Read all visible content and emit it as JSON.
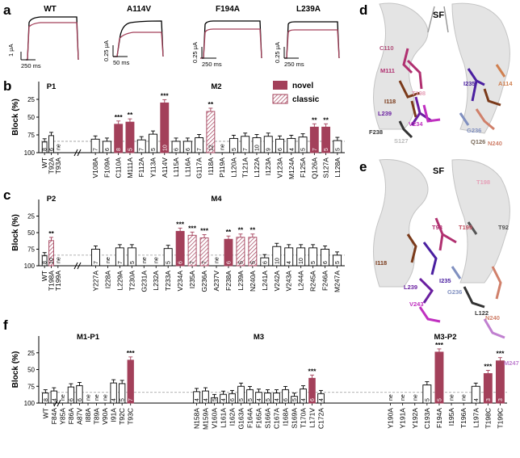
{
  "colors": {
    "novel": "#a3405a",
    "classic_stroke": "#a3405a",
    "wt_trace": "#000000",
    "drug_trace": "#a3405a",
    "bar_open": "#ffffff",
    "structure": "#cfcfcf"
  },
  "panel_labels": {
    "a": "a",
    "b": "b",
    "c": "c",
    "d": "d",
    "e": "e",
    "f": "f"
  },
  "traces": [
    {
      "title": "WT",
      "scale_current": "1 μA",
      "scale_time": "250 ms"
    },
    {
      "title": "A114V",
      "scale_current": "0.25 μA",
      "scale_time": "50 ms"
    },
    {
      "title": "F194A",
      "scale_current": "0.25 μA",
      "scale_time": "250 ms"
    },
    {
      "title": "L239A",
      "scale_current": "0.25 μA",
      "scale_time": "250 ms"
    }
  ],
  "legend": {
    "novel": "novel",
    "classic": "classic"
  },
  "y_axis": {
    "label": "Block (%)",
    "ticks": [
      "25",
      "50",
      "75",
      "100"
    ]
  },
  "structure_labels": {
    "d": {
      "sf": "SF",
      "residues": [
        {
          "text": "C110",
          "color": "#b0507a"
        },
        {
          "text": "M111",
          "color": "#b03070"
        },
        {
          "text": "T198",
          "color": "#e6a0b8"
        },
        {
          "text": "I118",
          "color": "#7a3a1a"
        },
        {
          "text": "L239",
          "color": "#6a1fa0"
        },
        {
          "text": "V234",
          "color": "#c030c0"
        },
        {
          "text": "F238",
          "color": "#333333"
        },
        {
          "text": "S127",
          "color": "#bbbbbb"
        },
        {
          "text": "I235",
          "color": "#4a1fa0"
        },
        {
          "text": "A114",
          "color": "#d08050"
        },
        {
          "text": "G236",
          "color": "#8090c0"
        },
        {
          "text": "Q126",
          "color": "#7a6a5a"
        },
        {
          "text": "N240",
          "color": "#d0806a"
        }
      ]
    },
    "e": {
      "sf": "SF",
      "residues": [
        {
          "text": "T198",
          "color": "#e6a0b8"
        },
        {
          "text": "T93",
          "color": "#b03070"
        },
        {
          "text": "T199",
          "color": "#c05060"
        },
        {
          "text": "T92",
          "color": "#555555"
        },
        {
          "text": "I118",
          "color": "#7a3a1a"
        },
        {
          "text": "I235",
          "color": "#4a1fa0"
        },
        {
          "text": "L239",
          "color": "#6a1fa0"
        },
        {
          "text": "G236",
          "color": "#8090c0"
        },
        {
          "text": "V243",
          "color": "#c030c0"
        },
        {
          "text": "L122",
          "color": "#333333"
        },
        {
          "text": "N240",
          "color": "#d0806a"
        },
        {
          "text": "M247",
          "color": "#c080d0"
        }
      ]
    }
  },
  "chart_data": [
    {
      "type": "bar",
      "panel": "b",
      "ylim": [
        100,
        0
      ],
      "ylabel": "Block (%)",
      "reference_line": 84,
      "groups": [
        {
          "label": "P1",
          "bars": [
            {
              "cat": "WT",
              "value": 85,
              "n": "8",
              "style": "open",
              "sig": ""
            },
            {
              "cat": "T92A",
              "value": 76,
              "n": "6",
              "style": "open",
              "sig": ""
            },
            {
              "cat": "T93A",
              "value": null,
              "n": "ne",
              "style": "none",
              "sig": ""
            }
          ]
        },
        {
          "label": "M2",
          "bars": [
            {
              "cat": "V108A",
              "value": 81,
              "n": "7",
              "style": "open",
              "sig": ""
            },
            {
              "cat": "F109A",
              "value": 84,
              "n": "6",
              "style": "open",
              "sig": ""
            },
            {
              "cat": "C110A",
              "value": 60,
              "n": "8",
              "style": "novel",
              "sig": "***"
            },
            {
              "cat": "M111A",
              "value": 57,
              "n": "5",
              "style": "novel",
              "sig": "**"
            },
            {
              "cat": "F112A",
              "value": 82,
              "n": "7",
              "style": "open",
              "sig": ""
            },
            {
              "cat": "Y113A",
              "value": 74,
              "n": "5",
              "style": "open",
              "sig": ""
            },
            {
              "cat": "A114V",
              "value": 30,
              "n": "10",
              "style": "novel",
              "sig": "***"
            },
            {
              "cat": "L115A",
              "value": 84,
              "n": "6",
              "style": "open",
              "sig": ""
            },
            {
              "cat": "L116A",
              "value": 84,
              "n": "6",
              "style": "open",
              "sig": ""
            },
            {
              "cat": "G117A",
              "value": 79,
              "n": "7",
              "style": "open",
              "sig": ""
            },
            {
              "cat": "I118A",
              "value": 42,
              "n": "12",
              "style": "classic",
              "sig": "**"
            },
            {
              "cat": "P119A",
              "value": null,
              "n": "ne",
              "style": "none",
              "sig": ""
            },
            {
              "cat": "L120A",
              "value": 80,
              "n": "5",
              "style": "open",
              "sig": ""
            },
            {
              "cat": "T121A",
              "value": 77,
              "n": "7",
              "style": "open",
              "sig": ""
            },
            {
              "cat": "L122A",
              "value": 79,
              "n": "10",
              "style": "open",
              "sig": ""
            },
            {
              "cat": "I123A",
              "value": 77,
              "n": "9",
              "style": "open",
              "sig": ""
            },
            {
              "cat": "V123A",
              "value": 81,
              "n": "6",
              "style": "open",
              "sig": ""
            },
            {
              "cat": "M124A",
              "value": 80,
              "n": "4",
              "style": "open",
              "sig": ""
            },
            {
              "cat": "F125A",
              "value": 78,
              "n": "5",
              "style": "open",
              "sig": ""
            },
            {
              "cat": "Q126A",
              "value": 64,
              "n": "7",
              "style": "novel",
              "sig": "**"
            },
            {
              "cat": "S127A",
              "value": 64,
              "n": "5",
              "style": "novel",
              "sig": "**"
            },
            {
              "cat": "L128A",
              "value": 83,
              "n": "5",
              "style": "open",
              "sig": ""
            }
          ]
        }
      ]
    },
    {
      "type": "bar",
      "panel": "c",
      "ylim": [
        100,
        0
      ],
      "ylabel": "Block (%)",
      "reference_line": 84,
      "groups": [
        {
          "label": "P2",
          "bars": [
            {
              "cat": "WT",
              "value": 85,
              "n": "8",
              "style": "open",
              "sig": ""
            },
            {
              "cat": "T198A",
              "value": 62,
              "n": "10",
              "style": "classic",
              "sig": "**"
            },
            {
              "cat": "T199A",
              "value": null,
              "n": "ne",
              "style": "none",
              "sig": ""
            }
          ]
        },
        {
          "label": "M4",
          "bars": [
            {
              "cat": "Y227A",
              "value": 75,
              "n": "7",
              "style": "open",
              "sig": ""
            },
            {
              "cat": "I228A",
              "value": null,
              "n": "ne",
              "style": "none",
              "sig": ""
            },
            {
              "cat": "L229A",
              "value": 73,
              "n": "7",
              "style": "open",
              "sig": ""
            },
            {
              "cat": "T230A",
              "value": 73,
              "n": "5",
              "style": "open",
              "sig": ""
            },
            {
              "cat": "G231A",
              "value": null,
              "n": "ne",
              "style": "none",
              "sig": ""
            },
            {
              "cat": "L232A",
              "value": null,
              "n": "ne",
              "style": "none",
              "sig": ""
            },
            {
              "cat": "T233A",
              "value": 74,
              "n": "5",
              "style": "open",
              "sig": ""
            },
            {
              "cat": "V234A",
              "value": 48,
              "n": "6",
              "style": "novel",
              "sig": "***"
            },
            {
              "cat": "I235A",
              "value": 54,
              "n": "7",
              "style": "classic",
              "sig": "***"
            },
            {
              "cat": "G236A",
              "value": 58,
              "n": "7",
              "style": "classic",
              "sig": "***"
            },
            {
              "cat": "A237V",
              "value": null,
              "n": "ne",
              "style": "none",
              "sig": ""
            },
            {
              "cat": "F238A",
              "value": 60,
              "n": "6",
              "style": "novel",
              "sig": "**"
            },
            {
              "cat": "L239A",
              "value": 57,
              "n": "5",
              "style": "classic",
              "sig": "**"
            },
            {
              "cat": "N240A",
              "value": 57,
              "n": "5",
              "style": "classic",
              "sig": "**"
            },
            {
              "cat": "L241A",
              "value": 88,
              "n": "6",
              "style": "open",
              "sig": ""
            },
            {
              "cat": "V242A",
              "value": 71,
              "n": "10",
              "style": "open",
              "sig": ""
            },
            {
              "cat": "V243A",
              "value": 73,
              "n": "4",
              "style": "open",
              "sig": ""
            },
            {
              "cat": "L244A",
              "value": 73,
              "n": "10",
              "style": "open",
              "sig": ""
            },
            {
              "cat": "R245A",
              "value": 73,
              "n": "5",
              "style": "open",
              "sig": ""
            },
            {
              "cat": "F246A",
              "value": 75,
              "n": "6",
              "style": "open",
              "sig": ""
            },
            {
              "cat": "M247A",
              "value": 84,
              "n": "5",
              "style": "open",
              "sig": ""
            }
          ]
        }
      ]
    },
    {
      "type": "bar",
      "panel": "f",
      "ylim": [
        100,
        0
      ],
      "ylabel": "Block (%)",
      "reference_line": 84,
      "groups": [
        {
          "label": "M1-P1",
          "bars": [
            {
              "cat": "WT",
              "value": 85,
              "n": "8",
              "style": "open",
              "sig": ""
            },
            {
              "cat": "F84A",
              "value": 82,
              "n": "4",
              "style": "open",
              "sig": ""
            },
            {
              "cat": "Y85A",
              "value": null,
              "n": "ne",
              "style": "none",
              "sig": ""
            },
            {
              "cat": "F86A",
              "value": 76,
              "n": "6",
              "style": "open",
              "sig": ""
            },
            {
              "cat": "A87V",
              "value": 74,
              "n": "6",
              "style": "open",
              "sig": ""
            },
            {
              "cat": "I88A",
              "value": null,
              "n": "ne",
              "style": "none",
              "sig": ""
            },
            {
              "cat": "T89A",
              "value": null,
              "n": "ne",
              "style": "none",
              "sig": ""
            },
            {
              "cat": "V90A",
              "value": null,
              "n": "ne",
              "style": "none",
              "sig": ""
            },
            {
              "cat": "I91A",
              "value": 70,
              "n": "4",
              "style": "open",
              "sig": ""
            },
            {
              "cat": "T92C",
              "value": 71,
              "n": "5",
              "style": "open",
              "sig": ""
            },
            {
              "cat": "T93C",
              "value": 36,
              "n": "7",
              "style": "novel",
              "sig": "***"
            }
          ]
        },
        {
          "label": "M3",
          "bars": [
            {
              "cat": "N158A",
              "value": 83,
              "n": "4",
              "style": "open",
              "sig": ""
            },
            {
              "cat": "M159A",
              "value": 82,
              "n": "4",
              "style": "open",
              "sig": ""
            },
            {
              "cat": "V160A",
              "value": 92,
              "n": "5",
              "style": "open",
              "sig": ""
            },
            {
              "cat": "L161A",
              "value": 87,
              "n": "4",
              "style": "open",
              "sig": ""
            },
            {
              "cat": "I162A",
              "value": 86,
              "n": "6",
              "style": "open",
              "sig": ""
            },
            {
              "cat": "G163A",
              "value": 75,
              "n": "5",
              "style": "open",
              "sig": ""
            },
            {
              "cat": "F164A",
              "value": 80,
              "n": "5",
              "style": "open",
              "sig": ""
            },
            {
              "cat": "F165A",
              "value": 84,
              "n": "4",
              "style": "open",
              "sig": ""
            },
            {
              "cat": "S166A",
              "value": 85,
              "n": "5",
              "style": "open",
              "sig": ""
            },
            {
              "cat": "C167A",
              "value": 85,
              "n": "4",
              "style": "open",
              "sig": ""
            },
            {
              "cat": "I168A",
              "value": 80,
              "n": "6",
              "style": "open",
              "sig": ""
            },
            {
              "cat": "S169A",
              "value": 90,
              "n": "5",
              "style": "open",
              "sig": ""
            },
            {
              "cat": "T170A",
              "value": 79,
              "n": "4",
              "style": "open",
              "sig": ""
            },
            {
              "cat": "L171V",
              "value": 63,
              "n": "6",
              "style": "novel",
              "sig": "***"
            },
            {
              "cat": "C172A",
              "value": 86,
              "n": "4",
              "style": "open",
              "sig": ""
            }
          ]
        },
        {
          "label": "M3-P2",
          "bars": [
            {
              "cat": "Y190A",
              "value": null,
              "n": "ne",
              "style": "none",
              "sig": ""
            },
            {
              "cat": "Y191A",
              "value": null,
              "n": "ne",
              "style": "none",
              "sig": ""
            },
            {
              "cat": "Y192A",
              "value": null,
              "n": "ne",
              "style": "none",
              "sig": ""
            },
            {
              "cat": "C193A",
              "value": 73,
              "n": "5",
              "style": "open",
              "sig": ""
            },
            {
              "cat": "F194A",
              "value": 24,
              "n": "5",
              "style": "novel",
              "sig": "***"
            },
            {
              "cat": "I195A",
              "value": null,
              "n": "ne",
              "style": "none",
              "sig": ""
            },
            {
              "cat": "T196A",
              "value": null,
              "n": "ne",
              "style": "none",
              "sig": ""
            },
            {
              "cat": "L197A",
              "value": 75,
              "n": "4",
              "style": "open",
              "sig": ""
            },
            {
              "cat": "T198C",
              "value": 56,
              "n": "3",
              "style": "novel",
              "sig": "***"
            },
            {
              "cat": "T199C",
              "value": 37,
              "n": "3",
              "style": "novel",
              "sig": "***"
            }
          ]
        }
      ]
    }
  ]
}
